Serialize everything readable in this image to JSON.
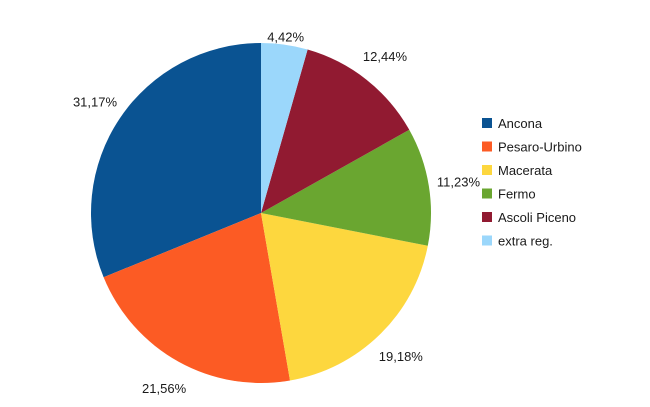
{
  "chart_data": {
    "type": "pie",
    "legend_position": "right",
    "slices": [
      {
        "name": "Ancona",
        "value": 31.17,
        "label": "31,17%",
        "color": "#0a5392"
      },
      {
        "name": "Pesaro-Urbino",
        "value": 21.56,
        "label": "21,56%",
        "color": "#fc5b24"
      },
      {
        "name": "Macerata",
        "value": 19.18,
        "label": "19,18%",
        "color": "#fdd73e"
      },
      {
        "name": "Fermo",
        "value": 11.23,
        "label": "11,23%",
        "color": "#6aa630"
      },
      {
        "name": "Ascoli Piceno",
        "value": 12.44,
        "label": "12,44%",
        "color": "#911a31"
      },
      {
        "name": "extra reg.",
        "value": 4.42,
        "label": "4,42%",
        "color": "#9bd7fb"
      }
    ]
  }
}
